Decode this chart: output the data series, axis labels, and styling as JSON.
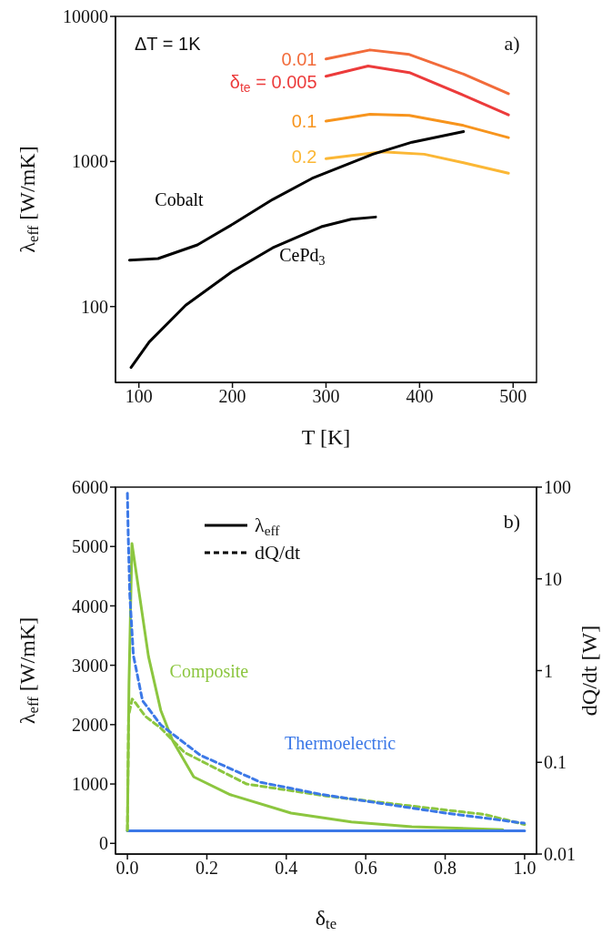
{
  "chart_data": [
    {
      "type": "line",
      "xlabel": "T [K]",
      "ylabel": "λ$_{eff}$ [W/mK]",
      "log": "y",
      "marker": "none",
      "xlim": [
        75,
        525
      ],
      "xticks": [
        100,
        200,
        300,
        400,
        500
      ],
      "ylim": [
        30,
        10000
      ],
      "yticks": [
        100,
        1000,
        10000
      ],
      "annotations": [
        "ΔT = 1K",
        "a)"
      ],
      "series": [
        {
          "name": "0.01",
          "color": "#f26b3a",
          "x": [
            300,
            347,
            389,
            447,
            495
          ],
          "values": [
            5085,
            5870,
            5465,
            4000,
            2930
          ]
        },
        {
          "name": "δ$_{te}$ = 0.005",
          "color": "#ec3b3b",
          "x": [
            300,
            345,
            389,
            447,
            495
          ],
          "values": [
            3870,
            4550,
            4100,
            2860,
            2095
          ]
        },
        {
          "name": "0.1",
          "color": "#f7941d",
          "x": [
            300,
            347,
            389,
            447,
            495
          ],
          "values": [
            1900,
            2113,
            2075,
            1770,
            1460
          ]
        },
        {
          "name": "0.2",
          "color": "#fbb735",
          "x": [
            300,
            360,
            405,
            447,
            495
          ],
          "values": [
            1045,
            1167,
            1122,
            981,
            830
          ]
        },
        {
          "name": "Cobalt",
          "color": "#000000",
          "x": [
            90,
            120.5,
            162.5,
            201,
            243,
            285,
            350,
            392,
            447
          ],
          "values": [
            209,
            214,
            266,
            372,
            547,
            764,
            1122,
            1358,
            1607
          ]
        },
        {
          "name": "CePd$_{3}$",
          "color": "#000000",
          "x": [
            91.6,
            111,
            150,
            199,
            243,
            295,
            327,
            353
          ],
          "values": [
            38,
            57,
            102,
            173,
            254,
            355,
            400,
            414
          ]
        }
      ]
    },
    {
      "type": "line",
      "xlabel": "δ$_{te}$",
      "ylabel": "λ$_{eff}$ [W/mK]",
      "y2label": "dQ/dt [W]",
      "log": "y2",
      "marker": "none",
      "xlim": [
        -0.03,
        1.03
      ],
      "xticks": [
        {
          "value": 0,
          "label": "0.0"
        },
        0.2,
        0.4,
        0.6,
        0.8,
        {
          "value": 1,
          "label": "1.0"
        }
      ],
      "ylim": [
        -180,
        6000
      ],
      "yticks": [
        0,
        1000,
        2000,
        3000,
        4000,
        5000,
        6000
      ],
      "y2lim": [
        0.01,
        100
      ],
      "y2ticks": [
        0.01,
        0.1,
        1,
        10,
        100
      ],
      "annotations": [
        "b)",
        "λ$_{eff}$",
        "dQ/dt"
      ],
      "series": [
        {
          "name": "Composite",
          "color": "#8cc63f",
          "x": [
            0,
            0.004,
            0.0114,
            0.03,
            0.053,
            0.084,
            0.114,
            0.167,
            0.259,
            0.412,
            0.564,
            0.716,
            0.945
          ],
          "values": [
            210,
            2700,
            5050,
            4200,
            3150,
            2240,
            1730,
            1120,
            820,
            510,
            360,
            280,
            230
          ]
        },
        {
          "name": "Thermoelectric",
          "color": "#3b78e7",
          "x": [
            0,
            1.0
          ],
          "values": [
            210,
            210
          ]
        },
        {
          "color": "#8cc63f",
          "axis": "y2",
          "line_style": "dashed",
          "x": [
            0,
            0.003,
            0.012,
            0.022,
            0.045,
            0.084,
            0.144,
            0.3,
            0.5,
            0.7,
            0.9,
            1.0
          ],
          "values": [
            0.018,
            0.322,
            0.49,
            0.436,
            0.318,
            0.236,
            0.128,
            0.058,
            0.043,
            0.034,
            0.027,
            0.021
          ]
        },
        {
          "color": "#3b78e7",
          "axis": "y2",
          "line_style": "dashed",
          "x": [
            0,
            0.002,
            0.006,
            0.015,
            0.038,
            0.084,
            0.183,
            0.336,
            0.488,
            0.64,
            0.793,
            0.999
          ],
          "values": [
            85.9,
            30.8,
            6.75,
            1.47,
            0.471,
            0.256,
            0.12,
            0.0605,
            0.0447,
            0.0356,
            0.0283,
            0.0217
          ]
        }
      ]
    }
  ]
}
